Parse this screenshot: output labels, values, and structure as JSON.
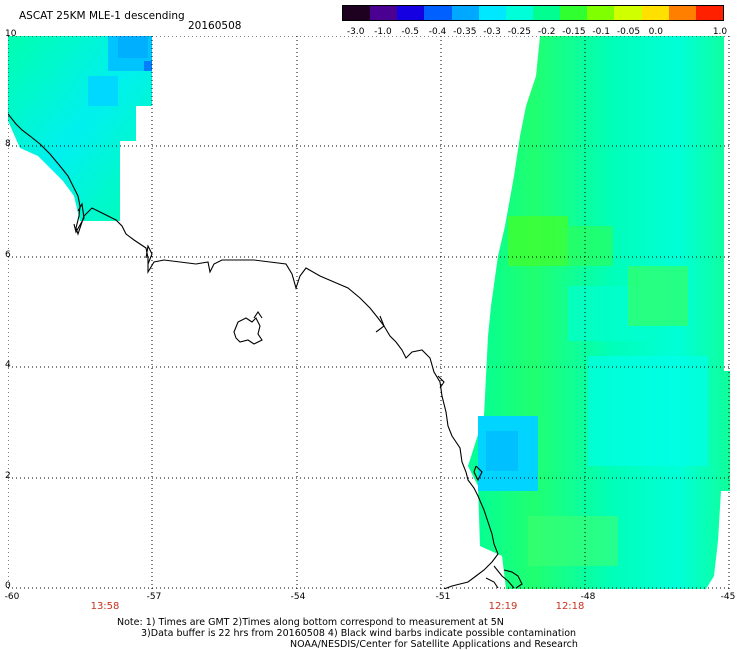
{
  "header": {
    "title": "ASCAT 25KM MLE-1 descending",
    "date": "20160508"
  },
  "colorbar": {
    "colors": [
      "#1e0020",
      "#4a0090",
      "#1400e0",
      "#0060ff",
      "#00a8ff",
      "#00e8ff",
      "#00ffd8",
      "#00ff90",
      "#30ff30",
      "#80ff00",
      "#d0ff00",
      "#ffe000",
      "#ff8000",
      "#ff2000"
    ],
    "labels": [
      "-3.0",
      "-1.0",
      "-0.5",
      "-0.4",
      "-0.35",
      "-0.3",
      "-0.25",
      "-0.2",
      "-0.15",
      "-0.1",
      "-0.05",
      "0.0",
      "1.0"
    ]
  },
  "axes": {
    "y_ticks": [
      "10",
      "8",
      "6",
      "4",
      "2",
      "0"
    ],
    "x_ticks": [
      "-60",
      "-57",
      "-54",
      "-51",
      "-48",
      "-45"
    ]
  },
  "times": [
    "13:58",
    "12:19",
    "12:18"
  ],
  "notes": {
    "line1": "Note: 1) Times are GMT 2)Times along bottom correspond to measurement at 5N",
    "line2": "3)Data buffer is 22 hrs from 20160508 4) Black wind barbs indicate possible contamination",
    "line3": "NOAA/NESDIS/Center for Satellite Applications and Research"
  },
  "legend_colors": {
    "cyan": "#00ffee",
    "green": "#00ff70",
    "blue": "#00b8ff",
    "time_label": "#c8321e"
  }
}
